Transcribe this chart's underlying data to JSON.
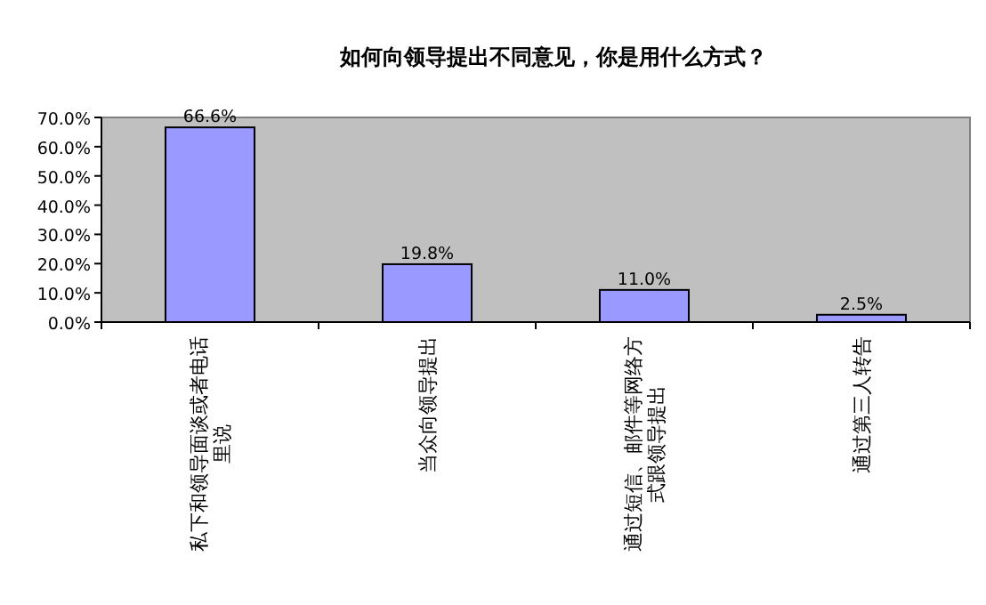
{
  "chart_data": {
    "type": "bar",
    "title": "如何向领导提出不同意见，你是用什么方式？",
    "categories": [
      "私下和领导面谈或者电话里说",
      "当众向领导提出",
      "通过短信、邮件等网络方式跟领导提出",
      "通过第三人转告"
    ],
    "values": [
      66.6,
      19.8,
      11.0,
      2.5
    ],
    "value_labels": [
      "66.6%",
      "19.8%",
      "11.0%",
      "2.5%"
    ],
    "color": "#9999ff",
    "ylim": [
      0,
      70
    ],
    "yticks": [
      {
        "value": 0,
        "label": "0.0%"
      },
      {
        "value": 10,
        "label": "10.0%"
      },
      {
        "value": 20,
        "label": "20.0%"
      },
      {
        "value": 30,
        "label": "30.0%"
      },
      {
        "value": 40,
        "label": "40.0%"
      },
      {
        "value": 50,
        "label": "50.0%"
      },
      {
        "value": 60,
        "label": "60.0%"
      },
      {
        "value": 70,
        "label": "70.0%"
      }
    ],
    "grid": false
  }
}
